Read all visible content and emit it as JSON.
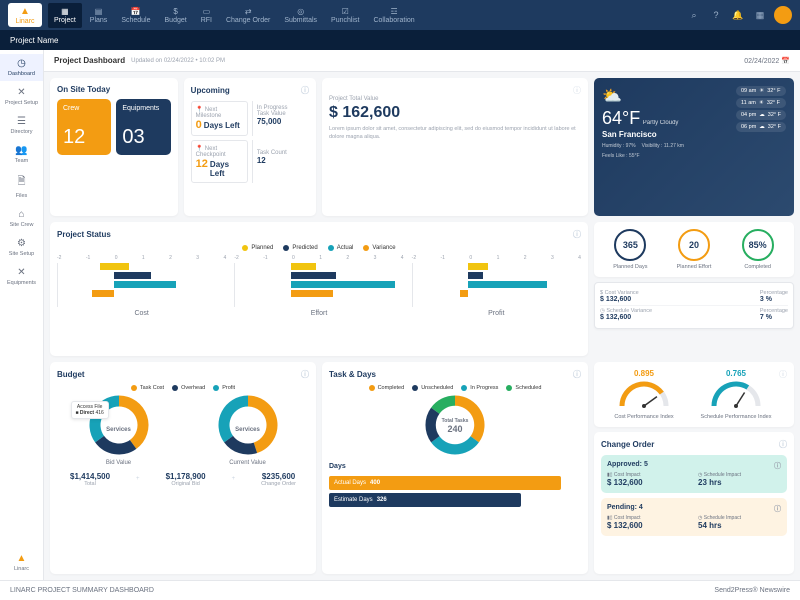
{
  "brand": "Linarc",
  "topnav": [
    {
      "icon": "▦",
      "label": "Project"
    },
    {
      "icon": "▤",
      "label": "Plans"
    },
    {
      "icon": "📅",
      "label": "Schedule"
    },
    {
      "icon": "$",
      "label": "Budget"
    },
    {
      "icon": "▭",
      "label": "RFI"
    },
    {
      "icon": "⇄",
      "label": "Change Order"
    },
    {
      "icon": "◎",
      "label": "Submittals"
    },
    {
      "icon": "☑",
      "label": "Punchlist"
    },
    {
      "icon": "☲",
      "label": "Collaboration"
    }
  ],
  "project_name": "Project Name",
  "leftnav": [
    {
      "icon": "◷",
      "label": "Dashboard"
    },
    {
      "icon": "✕",
      "label": "Project Setup"
    },
    {
      "icon": "☰",
      "label": "Directory"
    },
    {
      "icon": "👥",
      "label": "Team"
    },
    {
      "icon": "🗎",
      "label": "Files"
    },
    {
      "icon": "⌂",
      "label": "Site Crew"
    },
    {
      "icon": "⚙",
      "label": "Site Setup"
    },
    {
      "icon": "✕",
      "label": "Equipments"
    }
  ],
  "page": {
    "title": "Project Dashboard",
    "updated": "Updated on 02/24/2022 • 10:02 PM",
    "date": "02/24/2022"
  },
  "colors": {
    "orange": "#f39c12",
    "navy": "#1e3a5f",
    "teal": "#17a2b8",
    "green": "#27ae60",
    "yellow": "#f1c40f",
    "gray": "#cbd5e1"
  },
  "onsite": {
    "title": "On Site Today",
    "crew": {
      "label": "Crew",
      "value": "12"
    },
    "equip": {
      "label": "Equipments",
      "value": "03"
    }
  },
  "upcoming": {
    "title": "Upcoming",
    "items": [
      {
        "label": "Next Milestone",
        "num": "0",
        "unit": "Days Left"
      },
      {
        "label": "In Progress",
        "sub": "Task Value",
        "val": "75,000"
      },
      {
        "label": "Next Checkpoint",
        "num": "12",
        "unit": "Days Left"
      },
      {
        "label": "",
        "sub": "Task Count",
        "val": "12"
      }
    ]
  },
  "ptv": {
    "label": "Project Total Value",
    "value": "$ 162,600",
    "text": "Lorem ipsum dolor sit amet, consectetur adipiscing elit, sed do eiusmod tempor incididunt ut labore et dolore magna aliqua."
  },
  "weather": {
    "temp": "64°F",
    "cond": "Partly Cloudy",
    "loc": "San Francisco",
    "humidity": "Humidity : 97%",
    "vis": "Visibility : 11.27 km",
    "feels": "Feels Like : 55°F",
    "forecast": [
      {
        "t": "09 am",
        "i": "☀",
        "v": "32° F"
      },
      {
        "t": "11 am",
        "i": "☀",
        "v": "32° F"
      },
      {
        "t": "04 pm",
        "i": "☁",
        "v": "32° F"
      },
      {
        "t": "06 pm",
        "i": "☁",
        "v": "32° F"
      }
    ]
  },
  "status": {
    "title": "Project Status",
    "legend": [
      {
        "c": "#f1c40f",
        "l": "Planned"
      },
      {
        "c": "#1e3a5f",
        "l": "Predicted"
      },
      {
        "c": "#17a2b8",
        "l": "Actual"
      },
      {
        "c": "#f39c12",
        "l": "Variance"
      }
    ],
    "axis": [
      "-2",
      "-1",
      "0",
      "1",
      "2",
      "3",
      "4"
    ],
    "charts": [
      {
        "name": "Cost",
        "bars": [
          {
            "c": "#f1c40f",
            "from": 25,
            "to": 42
          },
          {
            "c": "#1e3a5f",
            "from": 33,
            "to": 55
          },
          {
            "c": "#17a2b8",
            "from": 33,
            "to": 70
          },
          {
            "c": "#f39c12",
            "from": 20,
            "to": 33
          }
        ]
      },
      {
        "name": "Effort",
        "bars": [
          {
            "c": "#f1c40f",
            "from": 33,
            "to": 48
          },
          {
            "c": "#1e3a5f",
            "from": 33,
            "to": 60
          },
          {
            "c": "#17a2b8",
            "from": 33,
            "to": 95
          },
          {
            "c": "#f39c12",
            "from": 33,
            "to": 58
          }
        ]
      },
      {
        "name": "Profit",
        "bars": [
          {
            "c": "#f1c40f",
            "from": 33,
            "to": 45
          },
          {
            "c": "#1e3a5f",
            "from": 33,
            "to": 42
          },
          {
            "c": "#17a2b8",
            "from": 33,
            "to": 80
          },
          {
            "c": "#f39c12",
            "from": 28,
            "to": 33
          }
        ]
      }
    ]
  },
  "kpis": [
    {
      "ring": "#1e3a5f",
      "val": "365",
      "label": "Planned Days"
    },
    {
      "ring": "#f39c12",
      "val": "20",
      "label": "Planned Effort"
    },
    {
      "ring": "#27ae60",
      "val": "85%",
      "label": "Completed"
    }
  ],
  "variances": [
    {
      "icon": "$",
      "l1": "Cost Variance",
      "v1": "$ 132,600",
      "l2": "Percentage",
      "v2": "3 %"
    },
    {
      "icon": "◷",
      "l1": "Schedule Variance",
      "v1": "$ 132,600",
      "l2": "Percentage",
      "v2": "7 %"
    }
  ],
  "budget": {
    "title": "Budget",
    "legend": [
      {
        "c": "#f39c12",
        "l": "Task Cost"
      },
      {
        "c": "#1e3a5f",
        "l": "Overhead"
      },
      {
        "c": "#17a2b8",
        "l": "Profit"
      }
    ],
    "tooltip": {
      "l1": "Access File",
      "l2": "Direct",
      "v": "416"
    },
    "donuts": [
      {
        "center": "Services",
        "segs": [
          {
            "c": "#f39c12",
            "p": 40
          },
          {
            "c": "#1e3a5f",
            "p": 25
          },
          {
            "c": "#17a2b8",
            "p": 35
          }
        ],
        "label": "Bid Value"
      },
      {
        "center": "Services",
        "segs": [
          {
            "c": "#f39c12",
            "p": 45
          },
          {
            "c": "#1e3a5f",
            "p": 20
          },
          {
            "c": "#17a2b8",
            "p": 35
          }
        ],
        "label": "Current Value"
      }
    ],
    "sums": [
      {
        "v": "$1,414,500",
        "l": "Total"
      },
      {
        "v": "$1,178,900",
        "l": "Original Bid"
      },
      {
        "v": "$235,600",
        "l": "Change Order"
      }
    ]
  },
  "tasks": {
    "title": "Task & Days",
    "legend": [
      {
        "c": "#f39c12",
        "l": "Completed"
      },
      {
        "c": "#1e3a5f",
        "l": "Unscheduled"
      },
      {
        "c": "#17a2b8",
        "l": "In Progress"
      },
      {
        "c": "#27ae60",
        "l": "Scheduled"
      }
    ],
    "donut": {
      "center_l": "Total Tasks",
      "center_v": "240",
      "segs": [
        {
          "c": "#f39c12",
          "p": 35
        },
        {
          "c": "#17a2b8",
          "p": 30
        },
        {
          "c": "#1e3a5f",
          "p": 20
        },
        {
          "c": "#27ae60",
          "p": 15
        }
      ]
    },
    "days_title": "Days",
    "days": [
      {
        "c": "#f39c12",
        "l": "Actual Days",
        "v": "400",
        "w": 92
      },
      {
        "c": "#1e3a5f",
        "l": "Estimate Days",
        "v": "326",
        "w": 76
      }
    ]
  },
  "gauges": [
    {
      "val": "0.895",
      "label": "Cost Performance Index",
      "color": "#f39c12",
      "pct": 80
    },
    {
      "val": "0.765",
      "label": "Schedule Performance Index",
      "color": "#17a2b8",
      "pct": 68
    }
  ],
  "change_order": {
    "title": "Change Order",
    "approved": {
      "hdr": "Approved: 5",
      "cost_l": "Cost Impact",
      "cost_v": "$ 132,600",
      "sch_l": "Schedule Impact",
      "sch_v": "23 hrs"
    },
    "pending": {
      "hdr": "Pending: 4",
      "cost_l": "Cost Impact",
      "cost_v": "$ 132,600",
      "sch_l": "Schedule Impact",
      "sch_v": "54 hrs"
    }
  },
  "footer": {
    "left": "LINARC PROJECT SUMMARY DASHBOARD",
    "right": "Send2Press® Newswire"
  }
}
